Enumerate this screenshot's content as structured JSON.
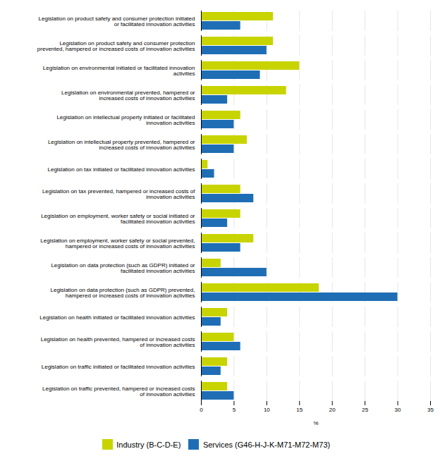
{
  "chart_data": {
    "type": "bar",
    "orientation": "horizontal",
    "categories": [
      "Legislation on product safety and consumer protection initiated\nor facilitated innovation activities",
      "Legislation on product safety and consumer protection\nprevented, hampered or increased costs of innovation activities",
      "Legislation on environmental initiated or facilitated innovation\nactivities",
      "Legislation on environmental prevented, hampered or\nincreased costs of innovation activities",
      "Legislation on intellectual property initiated or facilitated\ninnovation activities",
      "Legislation on intellectual property prevented, hampered or\nincreased costs of innovation activities",
      "Legislation on tax initiated or facilitated innovation activities",
      "Legislation on tax prevented, hampered or increased costs of\ninnovation activities",
      "Legislation on employment, worker safety or social initiated or\nfacilitated innovation activities",
      "Legislation on employment, worker safety or social prevented,\nhampered or increased costs of innovation activities",
      "Legislation on data protection (such as GDPR) initiated or\nfacilitated innovation activities",
      "Legislation on data protection (such as GDPR) prevented,\nhampered or increased costs of innovation activities",
      "Legislation on health initiated or facilitated innovation activities",
      "Legislation on health prevented, hampered or increased costs\nof innovation activities",
      "Legislation on traffic initiated or facilitated innovation activities",
      "Legislation on traffic prevented, hampered or increased costs\nof innovation activities"
    ],
    "series": [
      {
        "name": "Industry (B-C-D-E)",
        "color": "#c8d400",
        "values": [
          11,
          11,
          15,
          13,
          6,
          7,
          1,
          6,
          6,
          8,
          3,
          18,
          4,
          5,
          4,
          4
        ]
      },
      {
        "name": "Services (G46-H-J-K-M71-M72-M73)",
        "color": "#1f6eb5",
        "values": [
          6,
          10,
          9,
          4,
          5,
          5,
          2,
          8,
          4,
          6,
          10,
          30,
          3,
          6,
          3,
          5
        ]
      }
    ],
    "xlabel": "%",
    "xlim": [
      0,
      35
    ],
    "xticks": [
      0,
      5,
      10,
      15,
      20,
      25,
      30,
      35
    ],
    "grid": true,
    "legend": "bottom"
  }
}
